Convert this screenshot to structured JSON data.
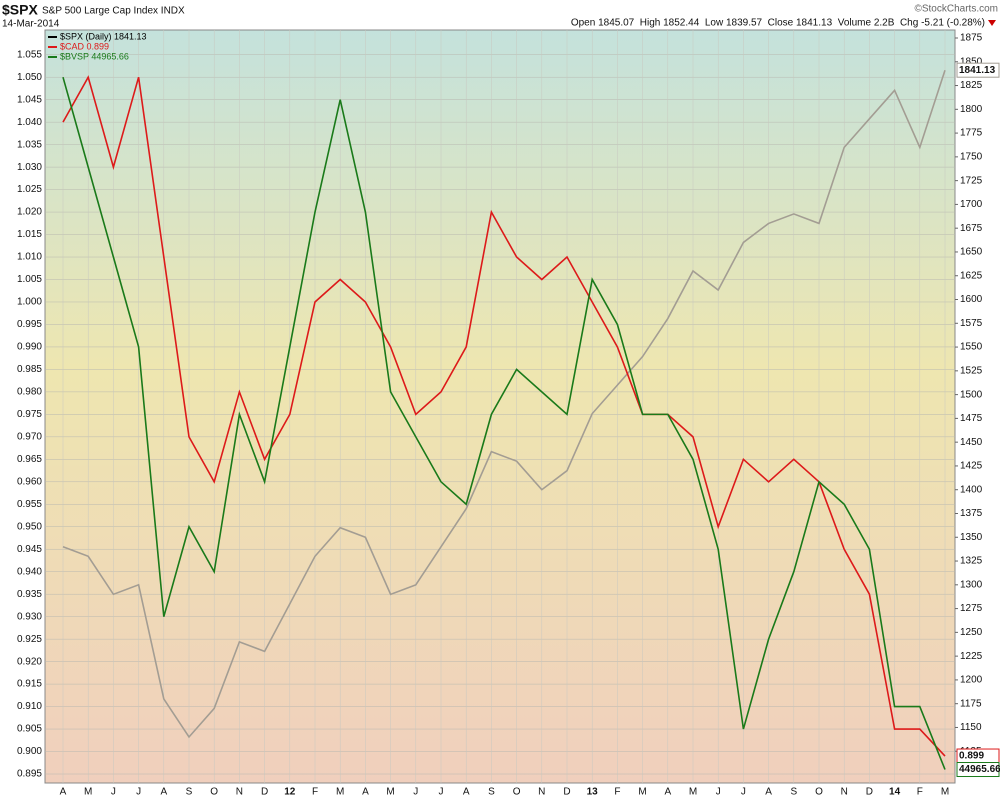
{
  "header": {
    "symbol": "$SPX",
    "name": "S&P 500 Large Cap Index INDX",
    "date": "14-Mar-2014",
    "credit": "©StockCharts.com",
    "quote": "Open 1845.07  High 1852.44  Low 1839.57  Close 1841.13  Volume 2.2B  Chg -5.21 (-0.28%)"
  },
  "chart_data": {
    "type": "line",
    "categories": [
      "A",
      "M",
      "J",
      "J",
      "A",
      "S",
      "O",
      "N",
      "D",
      "12",
      "F",
      "M",
      "A",
      "M",
      "J",
      "J",
      "A",
      "S",
      "O",
      "N",
      "D",
      "13",
      "F",
      "M",
      "A",
      "M",
      "J",
      "J",
      "A",
      "S",
      "O",
      "N",
      "D",
      "14",
      "F",
      "M"
    ],
    "series": [
      {
        "name": "$SPX (Daily) 1841.13",
        "color": "#a39d93",
        "axis": "y2",
        "end_label": "1841.13",
        "values": [
          1340,
          1330,
          1290,
          1300,
          1180,
          1140,
          1170,
          1240,
          1230,
          1280,
          1330,
          1360,
          1350,
          1290,
          1300,
          1340,
          1380,
          1440,
          1430,
          1400,
          1420,
          1480,
          1510,
          1540,
          1580,
          1630,
          1610,
          1660,
          1680,
          1690,
          1680,
          1760,
          1790,
          1820,
          1760,
          1841.13
        ]
      },
      {
        "name": "$CAD 0.899",
        "color": "#dd1a1a",
        "end_label": "0.899",
        "values": [
          1.04,
          1.05,
          1.03,
          1.05,
          1.01,
          0.97,
          0.96,
          0.98,
          0.965,
          0.975,
          1.0,
          1.005,
          1.0,
          0.99,
          0.975,
          0.98,
          0.99,
          1.02,
          1.01,
          1.005,
          1.01,
          1.0,
          0.99,
          0.975,
          0.975,
          0.97,
          0.95,
          0.965,
          0.96,
          0.965,
          0.96,
          0.945,
          0.935,
          0.905,
          0.905,
          0.899
        ]
      },
      {
        "name": "$BVSP 44965.66",
        "color": "#1a7a1a",
        "end_label": "44965.66",
        "values": [
          1.05,
          1.03,
          1.01,
          0.99,
          0.93,
          0.95,
          0.94,
          0.975,
          0.96,
          0.99,
          1.02,
          1.045,
          1.02,
          0.98,
          0.97,
          0.96,
          0.955,
          0.975,
          0.985,
          0.98,
          0.975,
          1.005,
          0.995,
          0.975,
          0.975,
          0.965,
          0.945,
          0.905,
          0.925,
          0.94,
          0.96,
          0.955,
          0.945,
          0.91,
          0.91,
          0.896
        ]
      }
    ],
    "ylim": [
      0.893,
      1.0605
    ],
    "yticks": [
      0.895,
      {
        "value": 0.9,
        "label": "0.900"
      },
      0.905,
      {
        "value": 0.91,
        "label": "0.910"
      },
      0.915,
      {
        "value": 0.92,
        "label": "0.920"
      },
      0.925,
      {
        "value": 0.93,
        "label": "0.930"
      },
      0.935,
      {
        "value": 0.94,
        "label": "0.940"
      },
      0.945,
      {
        "value": 0.95,
        "label": "0.950"
      },
      0.955,
      {
        "value": 0.96,
        "label": "0.960"
      },
      0.965,
      {
        "value": 0.97,
        "label": "0.970"
      },
      0.975,
      {
        "value": 0.98,
        "label": "0.980"
      },
      0.985,
      {
        "value": 0.99,
        "label": "0.990"
      },
      0.995,
      {
        "value": 1,
        "label": "1.000"
      },
      1.005,
      {
        "value": 1.01,
        "label": "1.010"
      },
      1.015,
      {
        "value": 1.02,
        "label": "1.020"
      },
      1.025,
      {
        "value": 1.03,
        "label": "1.030"
      },
      1.035,
      {
        "value": 1.04,
        "label": "1.040"
      },
      1.045,
      {
        "value": 1.05,
        "label": "1.050"
      },
      1.055
    ],
    "y2lim": [
      1091.6,
      1883.4
    ],
    "y2ticks": [
      1125,
      1150,
      1175,
      1200,
      1225,
      1250,
      1275,
      1300,
      1325,
      1350,
      1375,
      1400,
      1425,
      1450,
      1475,
      1500,
      1525,
      1550,
      1575,
      1600,
      1625,
      1650,
      1675,
      1700,
      1725,
      1750,
      1775,
      1800,
      1825,
      1850,
      1875
    ],
    "grid": true
  }
}
